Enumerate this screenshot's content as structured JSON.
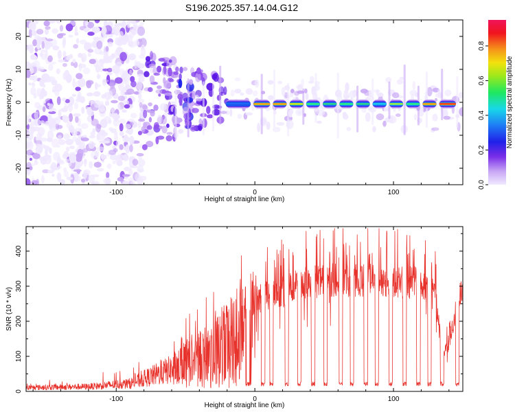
{
  "title": "S196.2025.357.14.04.G12",
  "colors": {
    "snr_line": "#e8322c",
    "cmap": [
      "#f0e8ff",
      "#c9a8f5",
      "#9050ee",
      "#5a16e6",
      "#1c20e8",
      "#1e7cf5",
      "#18d8e8",
      "#2ee86a",
      "#b8ec1a",
      "#f2e20e",
      "#f68a1a",
      "#f0141e"
    ]
  },
  "chart_data": [
    {
      "type": "heatmap",
      "name": "spectrogram",
      "xlabel": "Height of straight line (km)",
      "ylabel": "Frequency (Hz)",
      "xlim": [
        -165,
        150
      ],
      "ylim": [
        -25,
        25
      ],
      "xticks": [
        -100,
        0,
        100
      ],
      "yticks": [
        -20,
        -10,
        0,
        10,
        20
      ],
      "xticklabels": [
        "-100",
        "0",
        "100"
      ],
      "yticklabels": [
        "-20",
        "-10",
        "0",
        "10",
        "20"
      ],
      "colorbar": {
        "label": "Normalized spectral amplitude",
        "range": [
          0,
          0.95
        ],
        "ticks": [
          0.0,
          0.2,
          0.4,
          0.6,
          0.8
        ],
        "ticklabels": [
          "0.0",
          "0.2",
          "0.4",
          "0.6",
          "0.8"
        ]
      },
      "ridge_frequency_hz": -0.5,
      "ridge_segments": [
        {
          "x0": -22,
          "x1": -2,
          "amp": 0.45
        },
        {
          "x0": -2,
          "x1": 12,
          "amp": 0.8
        },
        {
          "x0": 12,
          "x1": 24,
          "amp": 0.85
        },
        {
          "x0": 24,
          "x1": 36,
          "amp": 0.72
        },
        {
          "x0": 36,
          "x1": 48,
          "amp": 0.62
        },
        {
          "x0": 48,
          "x1": 60,
          "amp": 0.58
        },
        {
          "x0": 60,
          "x1": 72,
          "amp": 0.6
        },
        {
          "x0": 72,
          "x1": 84,
          "amp": 0.58
        },
        {
          "x0": 84,
          "x1": 96,
          "amp": 0.55
        },
        {
          "x0": 96,
          "x1": 108,
          "amp": 0.65
        },
        {
          "x0": 108,
          "x1": 120,
          "amp": 0.62
        },
        {
          "x0": 120,
          "x1": 132,
          "amp": 0.82
        },
        {
          "x0": 132,
          "x1": 146,
          "amp": 0.9
        }
      ]
    },
    {
      "type": "line",
      "name": "snr",
      "xlabel": "Height of straight line (km)",
      "ylabel": "SNR (10 * v/v)",
      "xlim": [
        -165,
        150
      ],
      "ylim": [
        0,
        470
      ],
      "xticks": [
        -100,
        0,
        100
      ],
      "yticks": [
        0,
        100,
        200,
        300,
        400
      ],
      "xticklabels": [
        "-100",
        "0",
        "100"
      ],
      "yticklabels": [
        "0",
        "100",
        "200",
        "300",
        "400"
      ],
      "series": [
        {
          "name": "SNR",
          "envelope_x": [
            -165,
            -120,
            -90,
            -80,
            -60,
            -50,
            -40,
            -30,
            -20,
            -10,
            0,
            10,
            20,
            30,
            40,
            60,
            80,
            100,
            120,
            130,
            135,
            140,
            145,
            150
          ],
          "envelope_y": [
            12,
            15,
            25,
            40,
            70,
            120,
            140,
            160,
            200,
            250,
            280,
            300,
            310,
            330,
            340,
            345,
            345,
            340,
            335,
            310,
            120,
            140,
            250,
            330
          ],
          "dropout_x": [
            -5,
            6,
            12,
            23,
            32,
            42,
            51,
            62,
            70,
            80,
            88,
            98,
            108,
            118,
            126,
            135,
            146
          ],
          "dropout_value": 15
        }
      ]
    }
  ]
}
